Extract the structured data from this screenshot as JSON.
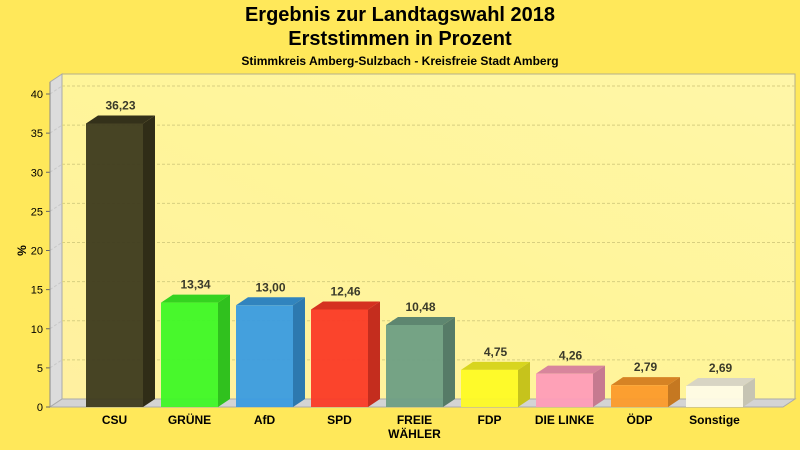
{
  "chart_data": {
    "type": "bar",
    "title": "Ergebnis zur Landtagswahl 2018",
    "subtitle": "Erststimmen in Prozent",
    "subtitle2": "Stimmkreis Amberg-Sulzbach - Kreisfreie Stadt Amberg",
    "xlabel": "",
    "ylabel": "%",
    "ylim": [
      0,
      40
    ],
    "yticks": [
      0,
      5,
      10,
      15,
      20,
      25,
      30,
      35,
      40
    ],
    "grid": true,
    "categories": [
      "CSU",
      "GRÜNE",
      "AfD",
      "SPD",
      "FREIE WÄHLER",
      "FDP",
      "DIE LINKE",
      "ÖDP",
      "Sonstige"
    ],
    "category_lines": [
      [
        "CSU"
      ],
      [
        "GRÜNE"
      ],
      [
        "AfD"
      ],
      [
        "SPD"
      ],
      [
        "FREIE",
        "WÄHLER"
      ],
      [
        "FDP"
      ],
      [
        "DIE LINKE"
      ],
      [
        "ÖDP"
      ],
      [
        "Sonstige"
      ]
    ],
    "values": [
      36.23,
      13.34,
      13.0,
      12.46,
      10.48,
      4.75,
      4.26,
      2.79,
      2.69
    ],
    "data_labels": [
      "36,23",
      "13,34",
      "13,00",
      "12,46",
      "10,48",
      "4,75",
      "4,26",
      "2,79",
      "2,69"
    ],
    "colors": [
      "#3d3a1e",
      "#3ef826",
      "#3a9be0",
      "#fb3a26",
      "#6e9e84",
      "#fefa24",
      "#fe9cb8",
      "#fc9a2a",
      "#fefbe6"
    ]
  }
}
